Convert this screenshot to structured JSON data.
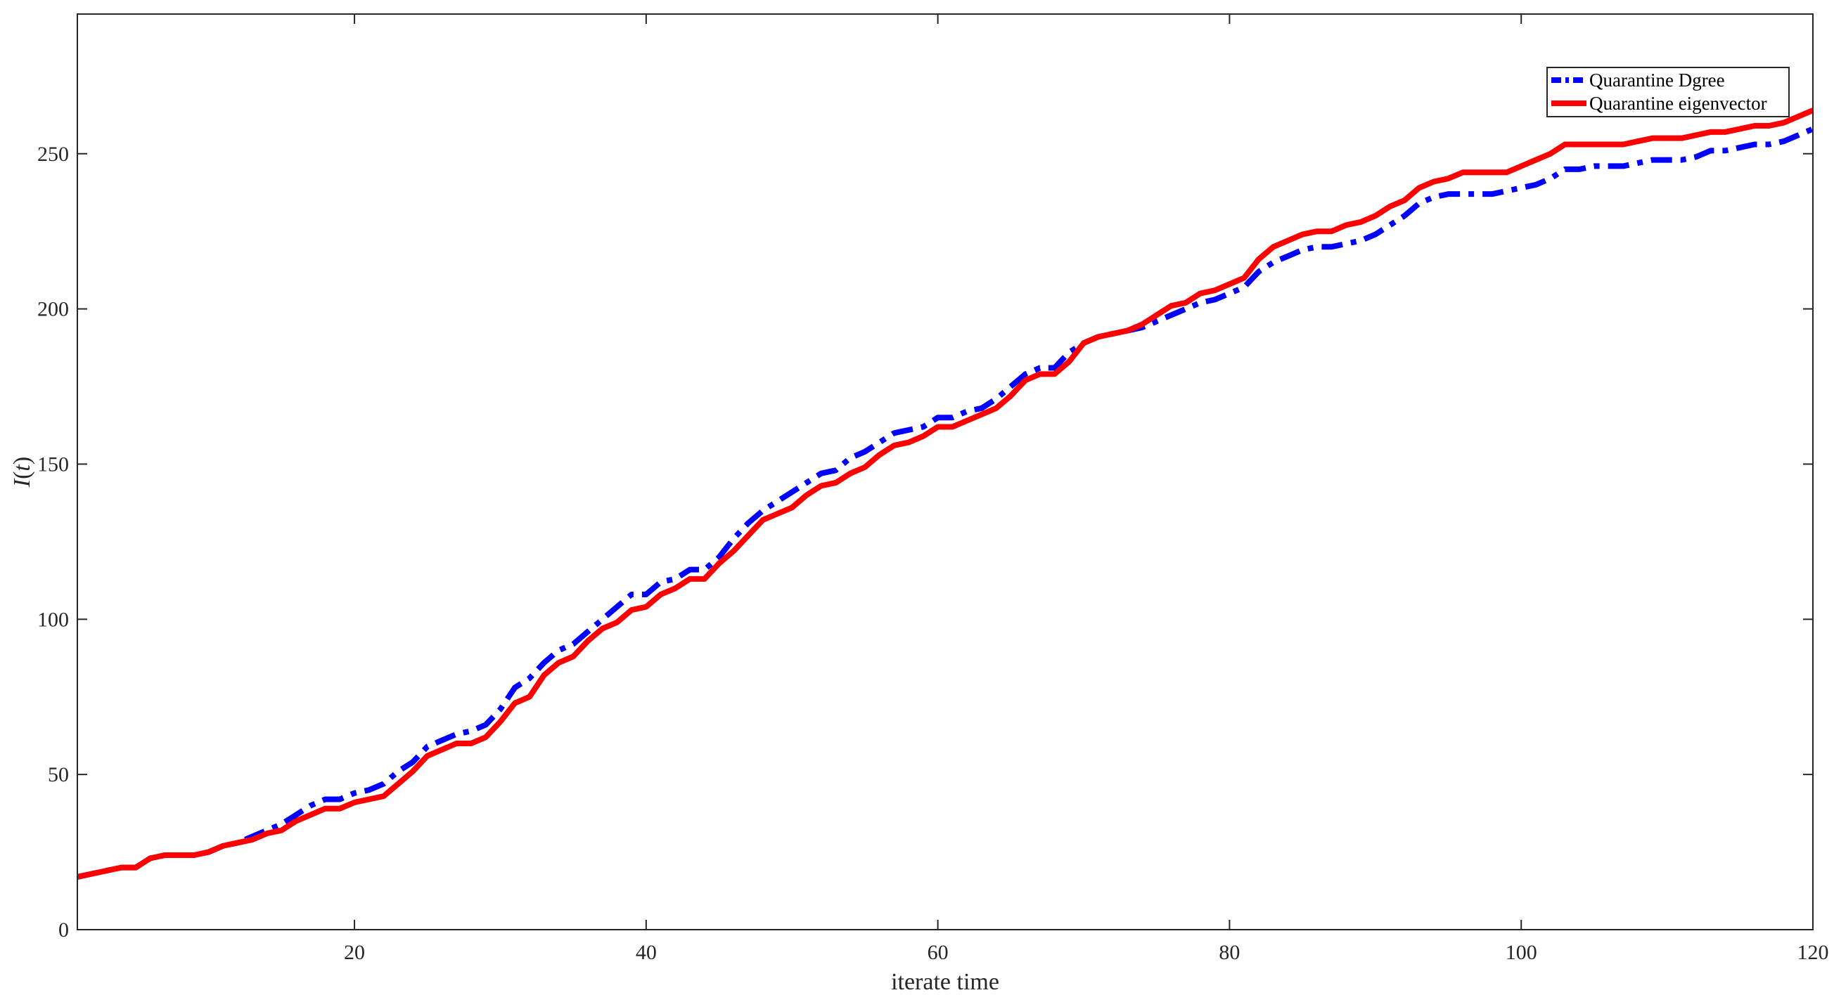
{
  "chart_data": {
    "type": "line",
    "xlabel": "iterate time",
    "ylabel": "I(t)",
    "ylabel_italic_var": "I",
    "ylabel_italic_arg": "t",
    "xlim": [
      1,
      120
    ],
    "ylim": [
      0,
      295
    ],
    "xticks": [
      20,
      40,
      60,
      80,
      100,
      120
    ],
    "yticks": [
      0,
      50,
      100,
      150,
      200,
      250
    ],
    "legend_position": "top-right",
    "grid": false,
    "series": [
      {
        "name": "Quarantine Dgree",
        "color": "#0000ff",
        "style": "dashdot",
        "x": [
          1,
          2,
          3,
          4,
          5,
          6,
          7,
          8,
          9,
          10,
          11,
          12,
          13,
          14,
          15,
          16,
          17,
          18,
          19,
          20,
          21,
          22,
          23,
          24,
          25,
          26,
          27,
          28,
          29,
          30,
          31,
          32,
          33,
          34,
          35,
          36,
          37,
          38,
          39,
          40,
          41,
          42,
          43,
          44,
          45,
          46,
          47,
          48,
          49,
          50,
          51,
          52,
          53,
          54,
          55,
          56,
          57,
          58,
          59,
          60,
          61,
          62,
          63,
          64,
          65,
          66,
          67,
          68,
          69,
          70,
          71,
          72,
          73,
          74,
          75,
          76,
          77,
          78,
          79,
          80,
          81,
          82,
          83,
          84,
          85,
          86,
          87,
          88,
          89,
          90,
          91,
          92,
          93,
          94,
          95,
          96,
          97,
          98,
          99,
          100,
          101,
          102,
          103,
          104,
          105,
          106,
          107,
          108,
          109,
          110,
          111,
          112,
          113,
          114,
          115,
          116,
          117,
          118,
          119,
          120
        ],
        "values": [
          17,
          18,
          19,
          20,
          20,
          23,
          24,
          24,
          24,
          25,
          27,
          28,
          30,
          32,
          34,
          37,
          40,
          42,
          42,
          44,
          45,
          47,
          51,
          54,
          59,
          61,
          63,
          64,
          66,
          71,
          78,
          81,
          86,
          90,
          92,
          96,
          100,
          104,
          108,
          108,
          112,
          113,
          116,
          116,
          120,
          126,
          131,
          135,
          138,
          141,
          144,
          147,
          148,
          152,
          154,
          157,
          160,
          161,
          162,
          165,
          165,
          167,
          168,
          171,
          175,
          179,
          181,
          181,
          186,
          189,
          191,
          192,
          193,
          194,
          196,
          198,
          200,
          202,
          203,
          205,
          207,
          212,
          215,
          217,
          219,
          220,
          220,
          221,
          222,
          224,
          227,
          230,
          234,
          236,
          237,
          237,
          237,
          237,
          238,
          239,
          240,
          242,
          245,
          245,
          246,
          246,
          246,
          247,
          248,
          248,
          248,
          249,
          251,
          251,
          252,
          253,
          253,
          254,
          256,
          258
        ]
      },
      {
        "name": "Quarantine eigenvector",
        "color": "#ff0000",
        "style": "solid",
        "x": [
          1,
          2,
          3,
          4,
          5,
          6,
          7,
          8,
          9,
          10,
          11,
          12,
          13,
          14,
          15,
          16,
          17,
          18,
          19,
          20,
          21,
          22,
          23,
          24,
          25,
          26,
          27,
          28,
          29,
          30,
          31,
          32,
          33,
          34,
          35,
          36,
          37,
          38,
          39,
          40,
          41,
          42,
          43,
          44,
          45,
          46,
          47,
          48,
          49,
          50,
          51,
          52,
          53,
          54,
          55,
          56,
          57,
          58,
          59,
          60,
          61,
          62,
          63,
          64,
          65,
          66,
          67,
          68,
          69,
          70,
          71,
          72,
          73,
          74,
          75,
          76,
          77,
          78,
          79,
          80,
          81,
          82,
          83,
          84,
          85,
          86,
          87,
          88,
          89,
          90,
          91,
          92,
          93,
          94,
          95,
          96,
          97,
          98,
          99,
          100,
          101,
          102,
          103,
          104,
          105,
          106,
          107,
          108,
          109,
          110,
          111,
          112,
          113,
          114,
          115,
          116,
          117,
          118,
          119,
          120
        ],
        "values": [
          17,
          18,
          19,
          20,
          20,
          23,
          24,
          24,
          24,
          25,
          27,
          28,
          29,
          31,
          32,
          35,
          37,
          39,
          39,
          41,
          42,
          43,
          47,
          51,
          56,
          58,
          60,
          60,
          62,
          67,
          73,
          75,
          82,
          86,
          88,
          93,
          97,
          99,
          103,
          104,
          108,
          110,
          113,
          113,
          118,
          122,
          127,
          132,
          134,
          136,
          140,
          143,
          144,
          147,
          149,
          153,
          156,
          157,
          159,
          162,
          162,
          164,
          166,
          168,
          172,
          177,
          179,
          179,
          183,
          189,
          191,
          192,
          193,
          195,
          198,
          201,
          202,
          205,
          206,
          208,
          210,
          216,
          220,
          222,
          224,
          225,
          225,
          227,
          228,
          230,
          233,
          235,
          239,
          241,
          242,
          244,
          244,
          244,
          244,
          246,
          248,
          250,
          253,
          253,
          253,
          253,
          253,
          254,
          255,
          255,
          255,
          256,
          257,
          257,
          258,
          259,
          259,
          260,
          262,
          264
        ]
      }
    ]
  }
}
